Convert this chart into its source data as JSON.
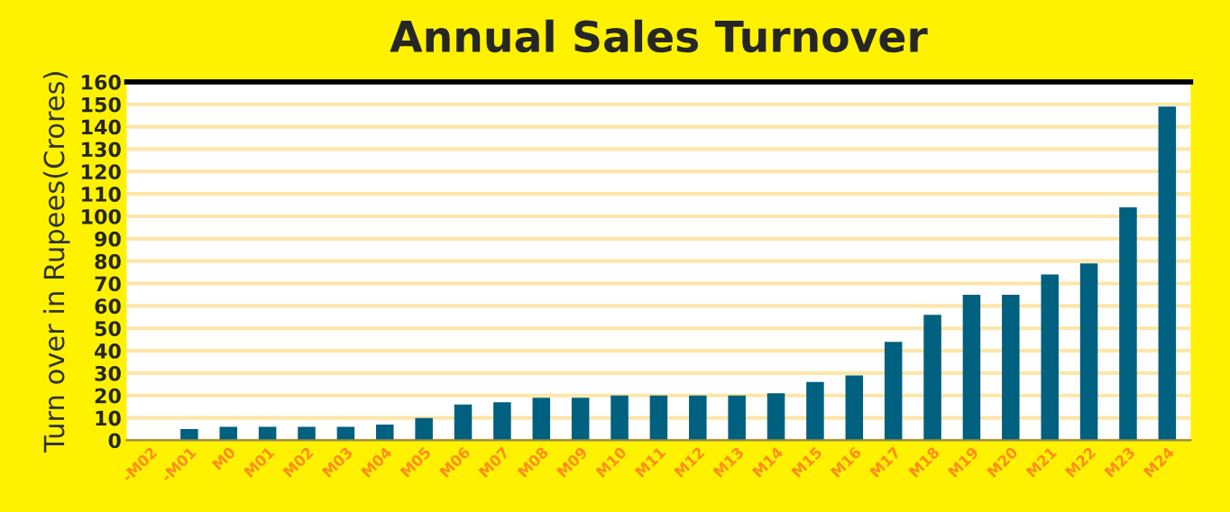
{
  "chart_data": {
    "type": "bar",
    "title": "Annual Sales Turnover",
    "ylabel": "Turn over in Rupees(Crores)",
    "categories": [
      "-M02",
      "-M01",
      "M0",
      "M01",
      "M02",
      "M03",
      "M04",
      "M05",
      "M06",
      "M07",
      "M08",
      "M09",
      "M10",
      "M11",
      "M12",
      "M13",
      "M14",
      "M15",
      "M16",
      "M17",
      "M18",
      "M19",
      "M20",
      "M21",
      "M22",
      "M23",
      "M24"
    ],
    "values": [
      0,
      5,
      6,
      6,
      6,
      6,
      7,
      10,
      16,
      17,
      19,
      19,
      20,
      20,
      20,
      20,
      21,
      26,
      29,
      44,
      56,
      65,
      65,
      74,
      79,
      104,
      149
    ],
    "color": "#00607f",
    "ylim": [
      0,
      160
    ],
    "yticks": [
      0,
      10,
      20,
      30,
      40,
      50,
      60,
      70,
      80,
      90,
      100,
      110,
      120,
      130,
      140,
      150,
      160
    ],
    "grid": "y"
  }
}
